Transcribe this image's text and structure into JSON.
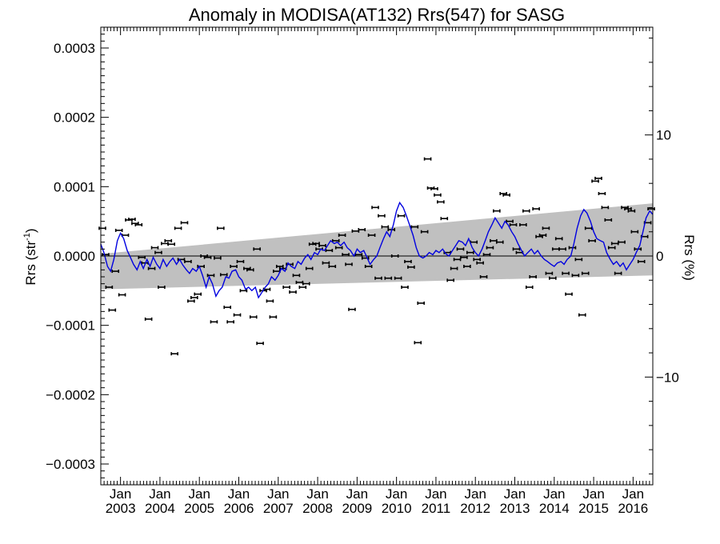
{
  "chart_data": {
    "type": "scatter",
    "title": "Anomaly in MODISA(AT132) Rrs(547) for SASG",
    "ylabel_main": "Rrs (str",
    "ylabel_sup": "-1",
    "ylabel_close": ")",
    "y2label": "Rrs (%)",
    "ylim": [
      -0.00033,
      0.00033
    ],
    "y2lim": [
      -18.9,
      18.9
    ],
    "xlim": [
      2002.5,
      2016.5
    ],
    "yticks": [
      {
        "value": 0.0003,
        "label": "0.0003"
      },
      {
        "value": 0.0002,
        "label": "0.0002"
      },
      {
        "value": 0.0001,
        "label": "0.0001"
      },
      {
        "value": 0.0,
        "label": "0.0000"
      },
      {
        "value": -0.0001,
        "label": "−0.0001"
      },
      {
        "value": -0.0002,
        "label": "−0.0002"
      },
      {
        "value": -0.0003,
        "label": "−0.0003"
      }
    ],
    "y2ticks": [
      {
        "value": 10,
        "label": "10"
      },
      {
        "value": 0,
        "label": "0"
      },
      {
        "value": -10,
        "label": "−10"
      }
    ],
    "xticks": [
      {
        "value": 2003,
        "month": "Jan",
        "year": "2003"
      },
      {
        "value": 2004,
        "month": "Jan",
        "year": "2004"
      },
      {
        "value": 2005,
        "month": "Jan",
        "year": "2005"
      },
      {
        "value": 2006,
        "month": "Jan",
        "year": "2006"
      },
      {
        "value": 2007,
        "month": "Jan",
        "year": "2007"
      },
      {
        "value": 2008,
        "month": "Jan",
        "year": "2008"
      },
      {
        "value": 2009,
        "month": "Jan",
        "year": "2009"
      },
      {
        "value": 2010,
        "month": "Jan",
        "year": "2010"
      },
      {
        "value": 2011,
        "month": "Jan",
        "year": "2011"
      },
      {
        "value": 2012,
        "month": "Jan",
        "year": "2012"
      },
      {
        "value": 2013,
        "month": "Jan",
        "year": "2013"
      },
      {
        "value": 2014,
        "month": "Jan",
        "year": "2014"
      },
      {
        "value": 2015,
        "month": "Jan",
        "year": "2015"
      },
      {
        "value": 2016,
        "month": "Jan",
        "year": "2016"
      }
    ],
    "band": {
      "color": "#c0c0c0",
      "start": {
        "x": 2002.5,
        "lower": -4.8e-05,
        "upper": 3e-06
      },
      "end": {
        "x": 2016.5,
        "lower": -2.8e-05,
        "upper": 7.6e-05
      }
    },
    "zero_line": 0.0,
    "smooth_color": "#0000e0",
    "point_color": "#000000",
    "smoothed": [
      [
        2002.5,
        1.7e-05
      ],
      [
        2002.58,
        5e-06
      ],
      [
        2002.67,
        -1.5e-05
      ],
      [
        2002.75,
        -2.2e-05
      ],
      [
        2002.83,
        -5e-06
      ],
      [
        2002.92,
        2.2e-05
      ],
      [
        2003.0,
        3.3e-05
      ],
      [
        2003.08,
        2.5e-05
      ],
      [
        2003.17,
        8e-06
      ],
      [
        2003.25,
        -2e-06
      ],
      [
        2003.33,
        -1.2e-05
      ],
      [
        2003.42,
        -2e-05
      ],
      [
        2003.5,
        -8e-06
      ],
      [
        2003.58,
        -1.8e-05
      ],
      [
        2003.67,
        -5e-06
      ],
      [
        2003.75,
        -1.5e-05
      ],
      [
        2003.83,
        -2e-06
      ],
      [
        2003.92,
        -1.2e-05
      ],
      [
        2004.0,
        -1.8e-05
      ],
      [
        2004.08,
        -5e-06
      ],
      [
        2004.17,
        -1.5e-05
      ],
      [
        2004.25,
        -8e-06
      ],
      [
        2004.33,
        -3e-06
      ],
      [
        2004.42,
        -1.2e-05
      ],
      [
        2004.5,
        -5e-06
      ],
      [
        2004.58,
        -1.3e-05
      ],
      [
        2004.67,
        -2e-05
      ],
      [
        2004.75,
        -2.5e-05
      ],
      [
        2004.83,
        -1.8e-05
      ],
      [
        2004.92,
        -2.2e-05
      ],
      [
        2005.0,
        -1.5e-05
      ],
      [
        2005.08,
        -2.8e-05
      ],
      [
        2005.17,
        -4.5e-05
      ],
      [
        2005.25,
        -3e-05
      ],
      [
        2005.33,
        -4e-05
      ],
      [
        2005.42,
        -5.8e-05
      ],
      [
        2005.5,
        -5e-05
      ],
      [
        2005.58,
        -4.5e-05
      ],
      [
        2005.67,
        -3e-05
      ],
      [
        2005.75,
        -3.2e-05
      ],
      [
        2005.83,
        -2.2e-05
      ],
      [
        2005.92,
        -2e-05
      ],
      [
        2006.0,
        -3e-05
      ],
      [
        2006.08,
        -3.5e-05
      ],
      [
        2006.17,
        -4.8e-05
      ],
      [
        2006.25,
        -4.5e-05
      ],
      [
        2006.33,
        -5e-05
      ],
      [
        2006.42,
        -4.5e-05
      ],
      [
        2006.5,
        -6e-05
      ],
      [
        2006.58,
        -5.3e-05
      ],
      [
        2006.67,
        -4.5e-05
      ],
      [
        2006.75,
        -4e-05
      ],
      [
        2006.83,
        -3e-05
      ],
      [
        2006.92,
        -3.5e-05
      ],
      [
        2007.0,
        -2.8e-05
      ],
      [
        2007.08,
        -1.8e-05
      ],
      [
        2007.17,
        -2.2e-05
      ],
      [
        2007.25,
        -1e-05
      ],
      [
        2007.33,
        -1.5e-05
      ],
      [
        2007.42,
        -1.8e-05
      ],
      [
        2007.5,
        -8e-06
      ],
      [
        2007.58,
        -1.2e-05
      ],
      [
        2007.67,
        -3e-06
      ],
      [
        2007.75,
        2e-06
      ],
      [
        2007.83,
        -5e-06
      ],
      [
        2007.92,
        5e-06
      ],
      [
        2008.0,
        2e-06
      ],
      [
        2008.08,
        1e-05
      ],
      [
        2008.17,
        8e-06
      ],
      [
        2008.25,
        1.5e-05
      ],
      [
        2008.33,
        2.2e-05
      ],
      [
        2008.42,
        1.8e-05
      ],
      [
        2008.5,
        2e-05
      ],
      [
        2008.58,
        1.5e-05
      ],
      [
        2008.67,
        2e-05
      ],
      [
        2008.75,
        1.2e-05
      ],
      [
        2008.83,
        8e-06
      ],
      [
        2008.92,
        0.0
      ],
      [
        2009.0,
        1e-05
      ],
      [
        2009.08,
        5e-06
      ],
      [
        2009.17,
        8e-06
      ],
      [
        2009.25,
        -2e-06
      ],
      [
        2009.33,
        -1.2e-05
      ],
      [
        2009.42,
        -5e-06
      ],
      [
        2009.5,
        0.0
      ],
      [
        2009.58,
        1.2e-05
      ],
      [
        2009.67,
        2.5e-05
      ],
      [
        2009.75,
        3.5e-05
      ],
      [
        2009.83,
        2.8e-05
      ],
      [
        2009.92,
        4.5e-05
      ],
      [
        2010.0,
        6.5e-05
      ],
      [
        2010.08,
        7.7e-05
      ],
      [
        2010.17,
        7e-05
      ],
      [
        2010.25,
        5.8e-05
      ],
      [
        2010.33,
        4.5e-05
      ],
      [
        2010.42,
        3e-05
      ],
      [
        2010.5,
        1.2e-05
      ],
      [
        2010.58,
        0.0
      ],
      [
        2010.67,
        -3e-06
      ],
      [
        2010.75,
        0.0
      ],
      [
        2010.83,
        5e-06
      ],
      [
        2010.92,
        2e-06
      ],
      [
        2011.0,
        8e-06
      ],
      [
        2011.08,
        5e-06
      ],
      [
        2011.17,
        1e-05
      ],
      [
        2011.25,
        3e-06
      ],
      [
        2011.33,
        0.0
      ],
      [
        2011.42,
        8e-06
      ],
      [
        2011.5,
        1.5e-05
      ],
      [
        2011.58,
        2.2e-05
      ],
      [
        2011.67,
        2e-05
      ],
      [
        2011.75,
        1.5e-05
      ],
      [
        2011.83,
        2.5e-05
      ],
      [
        2011.92,
        1.2e-05
      ],
      [
        2012.0,
        5e-06
      ],
      [
        2012.08,
        0.0
      ],
      [
        2012.17,
        1e-05
      ],
      [
        2012.25,
        2.2e-05
      ],
      [
        2012.33,
        3.5e-05
      ],
      [
        2012.42,
        4.5e-05
      ],
      [
        2012.5,
        5.5e-05
      ],
      [
        2012.58,
        4.8e-05
      ],
      [
        2012.67,
        4e-05
      ],
      [
        2012.75,
        5e-05
      ],
      [
        2012.83,
        4.5e-05
      ],
      [
        2012.92,
        3.5e-05
      ],
      [
        2013.0,
        2.8e-05
      ],
      [
        2013.08,
        1.8e-05
      ],
      [
        2013.17,
        8e-06
      ],
      [
        2013.25,
        0.0
      ],
      [
        2013.33,
        5e-06
      ],
      [
        2013.42,
        1e-05
      ],
      [
        2013.5,
        3e-06
      ],
      [
        2013.58,
        8e-06
      ],
      [
        2013.67,
        0.0
      ],
      [
        2013.75,
        -5e-06
      ],
      [
        2013.83,
        -8e-06
      ],
      [
        2013.92,
        -1.2e-05
      ],
      [
        2014.0,
        -1.5e-05
      ],
      [
        2014.08,
        -1e-05
      ],
      [
        2014.17,
        -8e-06
      ],
      [
        2014.25,
        -1.2e-05
      ],
      [
        2014.33,
        -5e-06
      ],
      [
        2014.42,
        0.0
      ],
      [
        2014.5,
        1.8e-05
      ],
      [
        2014.58,
        4e-05
      ],
      [
        2014.67,
        5.8e-05
      ],
      [
        2014.75,
        6.7e-05
      ],
      [
        2014.83,
        6.2e-05
      ],
      [
        2014.92,
        5e-05
      ],
      [
        2015.0,
        3.5e-05
      ],
      [
        2015.08,
        2.5e-05
      ],
      [
        2015.17,
        2.2e-05
      ],
      [
        2015.25,
        2e-05
      ],
      [
        2015.33,
        5e-06
      ],
      [
        2015.42,
        -5e-06
      ],
      [
        2015.5,
        -1.2e-05
      ],
      [
        2015.58,
        -8e-06
      ],
      [
        2015.67,
        -1.5e-05
      ],
      [
        2015.75,
        -1e-05
      ],
      [
        2015.83,
        -2e-05
      ],
      [
        2015.92,
        -1.2e-05
      ],
      [
        2016.0,
        -5e-06
      ],
      [
        2016.08,
        5e-06
      ],
      [
        2016.17,
        1.5e-05
      ],
      [
        2016.25,
        3.5e-05
      ],
      [
        2016.33,
        5.5e-05
      ],
      [
        2016.42,
        6.5e-05
      ],
      [
        2016.5,
        6e-05
      ]
    ],
    "points": [
      [
        2002.54,
        4e-05
      ],
      [
        2002.62,
        2e-06
      ],
      [
        2002.71,
        -4.5e-05
      ],
      [
        2002.79,
        -7.8e-05
      ],
      [
        2002.87,
        -2.2e-05
      ],
      [
        2002.96,
        3.7e-05
      ],
      [
        2003.04,
        -5.6e-05
      ],
      [
        2003.12,
        3e-05
      ],
      [
        2003.21,
        5.2e-05
      ],
      [
        2003.29,
        5.3e-05
      ],
      [
        2003.37,
        4.7e-05
      ],
      [
        2003.46,
        4.5e-05
      ],
      [
        2003.54,
        -2e-06
      ],
      [
        2003.62,
        -1e-05
      ],
      [
        2003.71,
        -9.1e-05
      ],
      [
        2003.79,
        -1.8e-05
      ],
      [
        2003.87,
        1.2e-05
      ],
      [
        2003.96,
        5e-06
      ],
      [
        2004.04,
        -4.5e-05
      ],
      [
        2004.12,
        1.8e-05
      ],
      [
        2004.21,
        2.2e-05
      ],
      [
        2004.29,
        1.7e-05
      ],
      [
        2004.37,
        -0.000141
      ],
      [
        2004.46,
        4e-05
      ],
      [
        2004.54,
        -5e-06
      ],
      [
        2004.62,
        4.8e-05
      ],
      [
        2004.71,
        -8e-06
      ],
      [
        2004.79,
        -6.5e-05
      ],
      [
        2004.87,
        -6e-05
      ],
      [
        2004.96,
        -5.5e-05
      ],
      [
        2005.04,
        -1.5e-05
      ],
      [
        2005.12,
        0.0
      ],
      [
        2005.21,
        -2e-06
      ],
      [
        2005.29,
        -2.8e-05
      ],
      [
        2005.37,
        -9.5e-05
      ],
      [
        2005.46,
        -3e-06
      ],
      [
        2005.54,
        4e-05
      ],
      [
        2005.62,
        -2.7e-05
      ],
      [
        2005.71,
        -7.4e-05
      ],
      [
        2005.79,
        -9.5e-05
      ],
      [
        2005.87,
        -1.5e-05
      ],
      [
        2005.96,
        -8.5e-05
      ],
      [
        2006.04,
        -8e-06
      ],
      [
        2006.12,
        -5e-05
      ],
      [
        2006.21,
        -1.8e-05
      ],
      [
        2006.29,
        -2e-05
      ],
      [
        2006.37,
        -8.8e-05
      ],
      [
        2006.46,
        1e-05
      ],
      [
        2006.54,
        -0.000126
      ],
      [
        2006.62,
        -5e-05
      ],
      [
        2006.71,
        -4.8e-05
      ],
      [
        2006.79,
        -6.5e-05
      ],
      [
        2006.87,
        -8.8e-05
      ],
      [
        2006.96,
        -2.2e-05
      ],
      [
        2007.04,
        -1.5e-05
      ],
      [
        2007.12,
        -1.8e-05
      ],
      [
        2007.21,
        -4.5e-05
      ],
      [
        2007.29,
        -1.2e-05
      ],
      [
        2007.37,
        -5.2e-05
      ],
      [
        2007.46,
        -2.8e-05
      ],
      [
        2007.54,
        -3.8e-05
      ],
      [
        2007.62,
        -4.5e-05
      ],
      [
        2007.71,
        -4e-05
      ],
      [
        2007.79,
        -1.8e-05
      ],
      [
        2007.87,
        1.7e-05
      ],
      [
        2007.96,
        1.8e-05
      ],
      [
        2008.04,
        1e-05
      ],
      [
        2008.12,
        1.5e-05
      ],
      [
        2008.21,
        -1e-05
      ],
      [
        2008.29,
        8e-06
      ],
      [
        2008.37,
        -1.5e-05
      ],
      [
        2008.46,
        2.2e-05
      ],
      [
        2008.54,
        1.2e-05
      ],
      [
        2008.62,
        3e-05
      ],
      [
        2008.71,
        2e-06
      ],
      [
        2008.79,
        -1.2e-05
      ],
      [
        2008.87,
        -7.7e-05
      ],
      [
        2008.96,
        3.6e-05
      ],
      [
        2009.04,
        2e-06
      ],
      [
        2009.12,
        3.8e-05
      ],
      [
        2009.21,
        -3e-06
      ],
      [
        2009.29,
        -1.5e-05
      ],
      [
        2009.37,
        3e-05
      ],
      [
        2009.46,
        7e-05
      ],
      [
        2009.54,
        -3.2e-05
      ],
      [
        2009.62,
        5.8e-05
      ],
      [
        2009.71,
        4.2e-05
      ],
      [
        2009.79,
        -3.2e-05
      ],
      [
        2009.87,
        3.8e-05
      ],
      [
        2009.96,
        0.0
      ],
      [
        2010.04,
        -3.2e-05
      ],
      [
        2010.12,
        5.8e-05
      ],
      [
        2010.21,
        -4.5e-05
      ],
      [
        2010.29,
        -8e-06
      ],
      [
        2010.37,
        -1.6e-05
      ],
      [
        2010.46,
        4.2e-05
      ],
      [
        2010.54,
        -0.000125
      ],
      [
        2010.62,
        -6.8e-05
      ],
      [
        2010.71,
        3.5e-05
      ],
      [
        2010.79,
        0.00014
      ],
      [
        2010.87,
        9.8e-05
      ],
      [
        2010.96,
        9.7e-05
      ],
      [
        2011.04,
        8.8e-05
      ],
      [
        2011.12,
        7.8e-05
      ],
      [
        2011.21,
        5.4e-05
      ],
      [
        2011.29,
        5e-06
      ],
      [
        2011.37,
        -3.5e-05
      ],
      [
        2011.46,
        -1.8e-05
      ],
      [
        2011.54,
        -5e-06
      ],
      [
        2011.62,
        1e-05
      ],
      [
        2011.71,
        -2e-06
      ],
      [
        2011.79,
        -1.5e-05
      ],
      [
        2011.87,
        5e-06
      ],
      [
        2011.96,
        2e-05
      ],
      [
        2012.04,
        -5e-06
      ],
      [
        2012.12,
        -1e-05
      ],
      [
        2012.21,
        -3e-05
      ],
      [
        2012.29,
        2e-06
      ],
      [
        2012.37,
        1.2e-05
      ],
      [
        2012.46,
        2.2e-05
      ],
      [
        2012.54,
        6.5e-05
      ],
      [
        2012.62,
        2e-05
      ],
      [
        2012.71,
        9e-05
      ],
      [
        2012.79,
        8.8e-05
      ],
      [
        2012.87,
        5e-05
      ],
      [
        2012.96,
        4.5e-05
      ],
      [
        2013.04,
        1e-05
      ],
      [
        2013.12,
        5e-06
      ],
      [
        2013.21,
        4.5e-05
      ],
      [
        2013.29,
        6.5e-05
      ],
      [
        2013.37,
        -4.5e-05
      ],
      [
        2013.46,
        -3e-05
      ],
      [
        2013.54,
        6.8e-05
      ],
      [
        2013.62,
        2.8e-05
      ],
      [
        2013.71,
        3e-05
      ],
      [
        2013.79,
        4e-05
      ],
      [
        2013.87,
        -2.5e-05
      ],
      [
        2013.96,
        -3.2e-05
      ],
      [
        2014.04,
        1e-05
      ],
      [
        2014.12,
        2.5e-05
      ],
      [
        2014.21,
        1e-05
      ],
      [
        2014.29,
        -2.5e-05
      ],
      [
        2014.37,
        -5.5e-05
      ],
      [
        2014.46,
        1.2e-05
      ],
      [
        2014.54,
        -2.8e-05
      ],
      [
        2014.62,
        -5e-06
      ],
      [
        2014.71,
        -8.5e-05
      ],
      [
        2014.79,
        -2.5e-05
      ],
      [
        2014.87,
        4e-05
      ],
      [
        2014.96,
        2.2e-05
      ],
      [
        2015.04,
        0.000108
      ],
      [
        2015.12,
        0.000112
      ],
      [
        2015.21,
        9e-05
      ],
      [
        2015.29,
        7e-05
      ],
      [
        2015.37,
        5.2e-05
      ],
      [
        2015.46,
        1.2e-05
      ],
      [
        2015.54,
        1.8e-05
      ],
      [
        2015.62,
        -2.5e-05
      ],
      [
        2015.71,
        2e-05
      ],
      [
        2015.79,
        7e-05
      ],
      [
        2015.87,
        6.8e-05
      ],
      [
        2015.96,
        6.5e-05
      ],
      [
        2016.04,
        3.5e-05
      ],
      [
        2016.12,
        1e-05
      ],
      [
        2016.21,
        -8e-06
      ],
      [
        2016.29,
        2.8e-05
      ],
      [
        2016.37,
        4.8e-05
      ],
      [
        2016.46,
        6.8e-05
      ]
    ]
  }
}
